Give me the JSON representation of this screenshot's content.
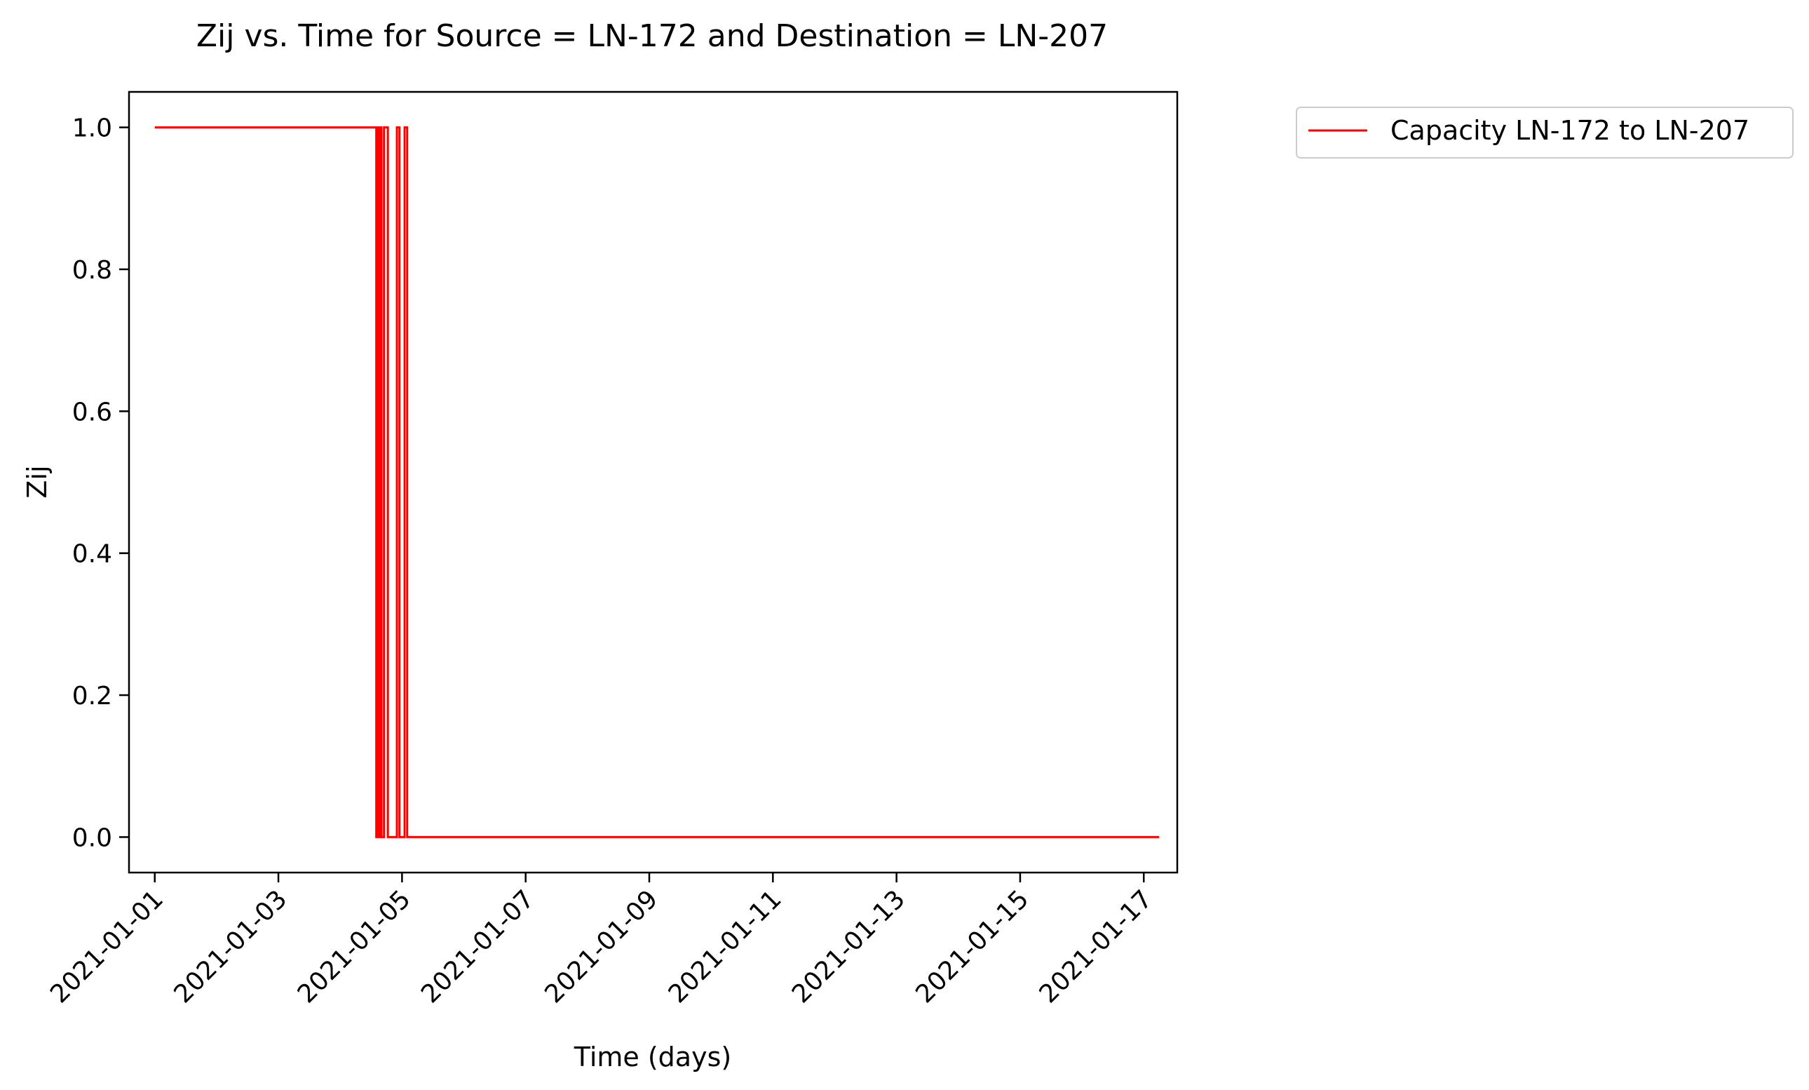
{
  "chart_data": {
    "type": "line",
    "title": "Zij vs. Time for Source = LN-172 and Destination = LN-207",
    "xlabel": "Time (days)",
    "ylabel": "Zij",
    "xlim": [
      "2020-12-31T14:00",
      "2021-01-17T13:00"
    ],
    "ylim": [
      -0.05,
      1.05
    ],
    "x_ticks": [
      "2021-01-01",
      "2021-01-03",
      "2021-01-05",
      "2021-01-07",
      "2021-01-09",
      "2021-01-11",
      "2021-01-13",
      "2021-01-15",
      "2021-01-17"
    ],
    "y_ticks": [
      "0.0",
      "0.2",
      "0.4",
      "0.6",
      "0.8",
      "1.0"
    ],
    "grid": false,
    "legend": "outside-top-right",
    "series": [
      {
        "name": "Capacity LN-172 to LN-207",
        "color": "#ff0000",
        "step": true,
        "x": [
          "2021-01-01T00:00",
          "2021-01-04T14:00",
          "2021-01-04T14:30",
          "2021-01-04T15:00",
          "2021-01-04T15:30",
          "2021-01-04T16:00",
          "2021-01-04T17:00",
          "2021-01-04T18:30",
          "2021-01-04T22:00",
          "2021-01-04T23:00",
          "2021-01-05T01:00",
          "2021-01-05T02:00",
          "2021-01-05T04:00",
          "2021-01-17T06:00"
        ],
        "y": [
          1,
          0,
          1,
          0,
          1,
          0,
          1,
          0,
          1,
          0,
          1,
          0,
          0,
          0
        ]
      }
    ]
  }
}
